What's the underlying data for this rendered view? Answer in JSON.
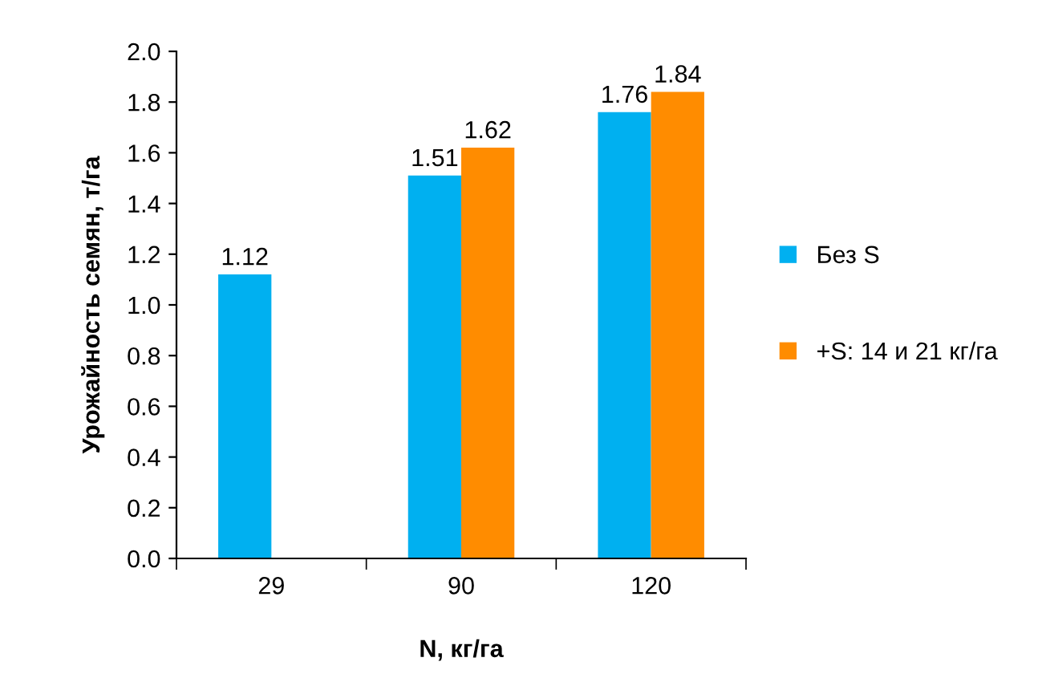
{
  "chart_data": {
    "type": "bar",
    "xlabel": "N, кг/га",
    "ylabel": "Урожайность семян, т/га",
    "categories": [
      "29",
      "90",
      "120"
    ],
    "series": [
      {
        "name": "Без S",
        "color": "#00b0f0",
        "values": [
          1.12,
          1.51,
          1.76
        ]
      },
      {
        "name": "+S: 14 и 21 кг/га",
        "color": "#ff8c00",
        "values": [
          null,
          1.62,
          1.84
        ]
      }
    ],
    "ylim": [
      0,
      2
    ],
    "yticks": [
      {
        "value": 0,
        "label": "0.0"
      },
      {
        "value": 0.2,
        "label": "0.2"
      },
      {
        "value": 0.4,
        "label": "0.4"
      },
      {
        "value": 0.6,
        "label": "0.6"
      },
      {
        "value": 0.8,
        "label": "0.8"
      },
      {
        "value": 1,
        "label": "1.0"
      },
      {
        "value": 1.2,
        "label": "1.2"
      },
      {
        "value": 1.4,
        "label": "1.4"
      },
      {
        "value": 1.6,
        "label": "1.6"
      },
      {
        "value": 1.8,
        "label": "1.8"
      },
      {
        "value": 2,
        "label": "2.0"
      }
    ],
    "data_labels": true,
    "grid": false,
    "legend": "right"
  }
}
